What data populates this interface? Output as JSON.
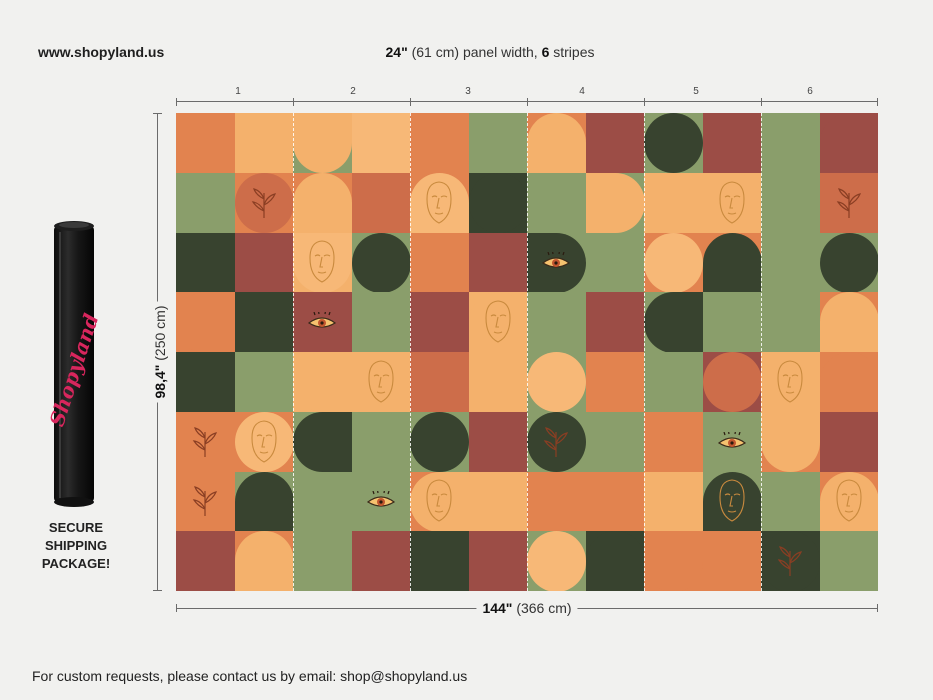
{
  "header": {
    "website": "www.shopyland.us",
    "panel_width_inch": "24\"",
    "panel_width_cm": " (61 cm) panel width, ",
    "stripes_count": "6",
    "stripes_word": " stripes"
  },
  "stripes": [
    "1",
    "2",
    "3",
    "4",
    "5",
    "6"
  ],
  "dimensions": {
    "height_inch": "98,4\"",
    "height_cm": " (250 cm)",
    "width_inch": "144\"",
    "width_cm": " (366 cm)"
  },
  "package": {
    "brand": "Shopyland",
    "secure_line1": "SECURE",
    "secure_line2": "SHIPPING",
    "secure_line3": "PACKAGE!"
  },
  "footer": {
    "contact": "For custom requests, please contact us by email: shop@shopyland.us"
  },
  "colors": {
    "orange": "#e2834f",
    "light_orange": "#f4b16c",
    "sage": "#8a9e6b",
    "dark_green": "#38432f",
    "brick": "#9c4d46",
    "terracotta": "#cd6d4a",
    "peach": "#f7b877",
    "background": "#f1f1ef"
  },
  "wallpaper": {
    "rows": 8,
    "cols": 12,
    "cells": [
      [
        "LO:orange:fullsq",
        "LO:lightorange:fullsq",
        "SG:lightorange:archdown",
        "LO:peach:fullsq",
        "OR:orange:fullsq",
        "SG:sage:fullsq",
        "OR:lightorange:archtop",
        "BR:brick:fullsq",
        "SG:darkgreen:circle",
        "BR:brick:fullsq",
        "SG:sage:archtop",
        "BR:brick:archtop"
      ],
      [
        "SG:sage:fullsq",
        "OR:terracotta:circle",
        "OR:lightorange:archtop",
        "OR:terracotta:fullsq",
        "OR:peach:archtop",
        "DG:darkgreen:circle",
        "SG:sage:fullsq",
        "SG:lightorange:archright",
        "LO:lightorange:archleft",
        "LO:lightorange:archright",
        "SG:sage:fullsq",
        "OR:terracotta:fullsq"
      ],
      [
        "DG:darkgreen:fullsq",
        "BR:brick:fullsq",
        "LO:peach:archdown",
        "SG:darkgreen:circle",
        "OR:orange:fullsq",
        "BR:brick:fullsq",
        "SG:darkgreen:archright",
        "SG:sage:fullsq",
        "OR:peach:circle",
        "OR:darkgreen:archtop",
        "SG:sage:fullsq",
        "SG:darkgreen:circle"
      ],
      [
        "OR:orange:archleft",
        "SG:darkgreen:fullsq",
        "BR:brick:fullsq",
        "SG:sage:fullsq",
        "BR:brick:archtop",
        "LO:lightorange:archtop",
        "SG:sage:archleft",
        "BR:brick:fullsq",
        "SG:darkgreen:archleft",
        "SG:sage:fullsq",
        "SG:sage:fullsq",
        "OR:lightorange:archtop"
      ],
      [
        "DG:darkgreen:fullsq",
        "SG:sage:fullsq",
        "LO:lightorange:archleft",
        "LO:lightorange:fullsq",
        "OR:terracotta:fullsq",
        "LO:lightorange:fullsq",
        "SG:peach:circle",
        "OR:orange:fullsq",
        "SG:sage:archleft",
        "BR:terracotta:circle",
        "OR:lightorange:fullsq",
        "OR:orange:archtop"
      ],
      [
        "OR:orange:fullsq",
        "OR:peach:circle",
        "SG:darkgreen:archleft",
        "SG:sage:archtop",
        "SG:darkgreen:circle",
        "BR:brick:fullsq",
        "SG:darkgreen:circle",
        "SG:sage:fullsq",
        "OR:orange:fullsq",
        "SG:sage:fullsq",
        "OR:lightorange:archdown",
        "BR:brick:fullsq"
      ],
      [
        "OR:orange:fullsq",
        "SG:darkgreen:archtop",
        "SG:sage:fullsq",
        "SG:sage:fullsq",
        "OR:lightorange:archleft",
        "LO:lightorange:archright",
        "OR:orange:fullsq",
        "OR:orange:fullsq",
        "LO:lightorange:fullsq",
        "SG:darkgreen:archtop",
        "SG:sage:fullsq",
        "OR:lightorange:archtop"
      ],
      [
        "BR:brick:fullsq",
        "OR:lightorange:archtop",
        "SG:sage:fullsq",
        "BR:brick:fullsq",
        "DG:darkgreen:fullsq",
        "BR:brick:fullsq",
        "SG:peach:circle",
        "DG:darkgreen:archtop",
        "OR:orange:archdown",
        "OR:orange:fullsq",
        "DG:darkgreen:circle",
        "SG:sage:fullsq"
      ]
    ]
  }
}
